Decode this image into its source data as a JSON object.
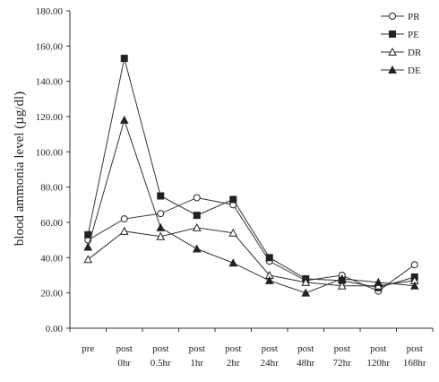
{
  "chart_data": {
    "type": "line",
    "title": "",
    "xlabel": "",
    "ylabel": "blood ammonia level (µg/dl)",
    "ylim": [
      0,
      180
    ],
    "yticks": [
      "0.00",
      "20.00",
      "40.00",
      "60.00",
      "80.00",
      "100.00",
      "120.00",
      "140.00",
      "160.00",
      "180.00"
    ],
    "grid": false,
    "legend_position": "top-right",
    "categories": [
      {
        "line1": "pre",
        "line2": ""
      },
      {
        "line1": "post",
        "line2": "0hr"
      },
      {
        "line1": "post",
        "line2": "0.5hr"
      },
      {
        "line1": "post",
        "line2": "1hr"
      },
      {
        "line1": "post",
        "line2": "2hr"
      },
      {
        "line1": "post",
        "line2": "24hr"
      },
      {
        "line1": "post",
        "line2": "48hr"
      },
      {
        "line1": "post",
        "line2": "72hr"
      },
      {
        "line1": "post",
        "line2": "120hr"
      },
      {
        "line1": "post",
        "line2": "168hr"
      }
    ],
    "series": [
      {
        "name": "PR",
        "marker": "circle-open",
        "values": [
          50,
          62,
          65,
          74,
          70,
          38,
          27,
          30,
          21,
          36
        ]
      },
      {
        "name": "PE",
        "marker": "square-filled",
        "values": [
          53,
          153,
          75,
          64,
          73,
          40,
          28,
          27,
          23,
          29
        ]
      },
      {
        "name": "DR",
        "marker": "triangle-open",
        "values": [
          39,
          55,
          52,
          57,
          54,
          30,
          26,
          24,
          24,
          27
        ]
      },
      {
        "name": "DE",
        "marker": "triangle-filled",
        "values": [
          46,
          118,
          57,
          45,
          37,
          27,
          20,
          28,
          26,
          24
        ]
      }
    ]
  }
}
